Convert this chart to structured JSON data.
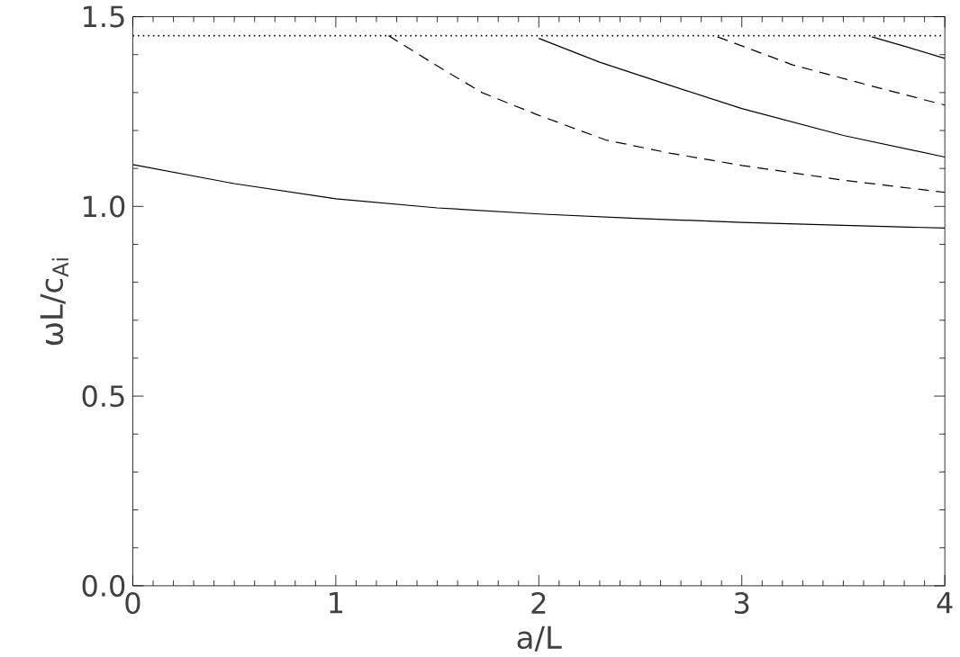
{
  "chart_data": {
    "type": "line",
    "xlabel": "a/L",
    "ylabel": "ωL/c$_{Ai}$",
    "xlim": [
      0,
      4
    ],
    "ylim": [
      0,
      1.5
    ],
    "xticks": [
      0,
      1,
      2,
      3,
      4
    ],
    "yticks": [
      {
        "value": 0,
        "label": "0.0"
      },
      {
        "value": 0.5,
        "label": "0.5"
      },
      {
        "value": 1,
        "label": "1.0"
      },
      {
        "value": 1.5,
        "label": "1.5"
      }
    ],
    "grid": false,
    "legend": false,
    "marker": "none",
    "ref_lines": [
      {
        "axis": "y",
        "value": 1.45,
        "line_style": "dotted",
        "color": "#000000"
      }
    ],
    "series": [
      {
        "color": "#000000",
        "line_style": "solid",
        "x": [
          0,
          0.5,
          1,
          1.5,
          2,
          2.5,
          3,
          3.5,
          4
        ],
        "values": [
          1.11,
          1.06,
          1.02,
          0.996,
          0.98,
          0.968,
          0.958,
          0.95,
          0.943
        ]
      },
      {
        "color": "#000000",
        "line_style": "dashed",
        "x": [
          1.26,
          1.5,
          1.72,
          2,
          2.33,
          2.65,
          3,
          3.5,
          4
        ],
        "values": [
          1.45,
          1.37,
          1.3,
          1.24,
          1.175,
          1.14,
          1.108,
          1.069,
          1.037
        ]
      },
      {
        "color": "#000000",
        "line_style": "solid",
        "x": [
          2,
          2.3,
          2.64,
          3,
          3.5,
          4
        ],
        "values": [
          1.443,
          1.38,
          1.32,
          1.258,
          1.187,
          1.13
        ]
      },
      {
        "color": "#000000",
        "line_style": "dashed",
        "x": [
          2.88,
          3.25,
          3.62,
          4
        ],
        "values": [
          1.447,
          1.373,
          1.32,
          1.267
        ]
      },
      {
        "color": "#000000",
        "line_style": "solid",
        "x": [
          3.64,
          3.82,
          4
        ],
        "values": [
          1.447,
          1.419,
          1.39
        ]
      }
    ]
  }
}
